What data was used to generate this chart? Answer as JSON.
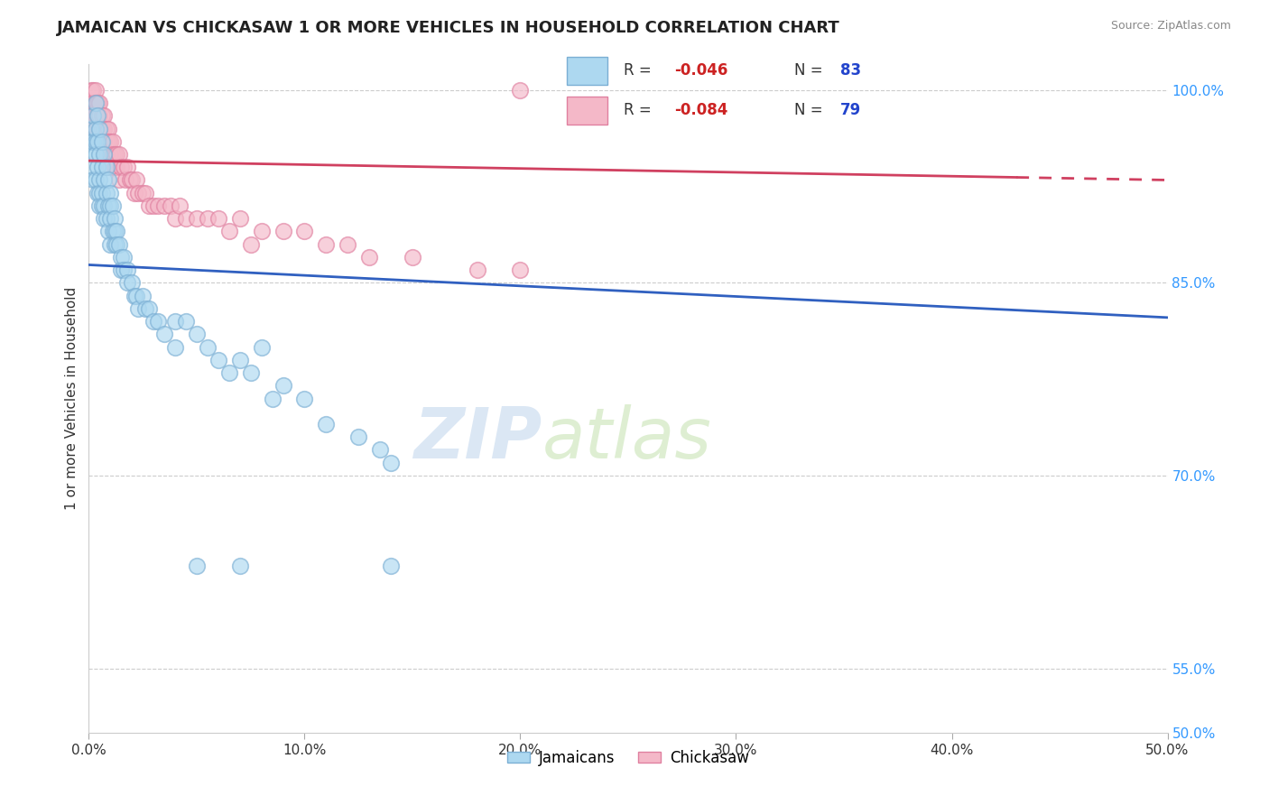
{
  "title": "JAMAICAN VS CHICKASAW 1 OR MORE VEHICLES IN HOUSEHOLD CORRELATION CHART",
  "source": "Source: ZipAtlas.com",
  "ylabel": "1 or more Vehicles in Household",
  "xlim": [
    0.0,
    0.5
  ],
  "ylim": [
    0.5,
    1.02
  ],
  "xtick_labels": [
    "0.0%",
    "10.0%",
    "20.0%",
    "30.0%",
    "40.0%",
    "50.0%"
  ],
  "xtick_vals": [
    0.0,
    0.1,
    0.2,
    0.3,
    0.4,
    0.5
  ],
  "ytick_right_labels": [
    "100.0%",
    "85.0%",
    "70.0%",
    "55.0%",
    "50.0%"
  ],
  "ytick_right_vals": [
    1.0,
    0.85,
    0.7,
    0.55,
    0.5
  ],
  "ytick_grid_vals": [
    1.0,
    0.85,
    0.7,
    0.55
  ],
  "watermark_zip": "ZIP",
  "watermark_atlas": "atlas",
  "R_jamaican": -0.046,
  "N_jamaican": 83,
  "R_chickasaw": -0.084,
  "N_chickasaw": 79,
  "color_jamaican_face": "#add8f0",
  "color_jamaican_edge": "#7bafd4",
  "color_chickasaw_face": "#f4b8c8",
  "color_chickasaw_edge": "#e080a0",
  "trendline_color_jamaican": "#3060c0",
  "trendline_color_chickasaw": "#d04060",
  "trend_j_y0": 0.864,
  "trend_j_y1": 0.823,
  "trend_c_y0": 0.945,
  "trend_c_y1": 0.93,
  "trend_c_solid_end": 0.43,
  "legend_label_jamaican": "Jamaicans",
  "legend_label_chickasaw": "Chickasaw",
  "legend_face_jamaican": "#add8f0",
  "legend_face_chickasaw": "#f4b8c8",
  "jamaican_x": [
    0.001,
    0.001,
    0.001,
    0.002,
    0.002,
    0.002,
    0.002,
    0.003,
    0.003,
    0.003,
    0.003,
    0.003,
    0.004,
    0.004,
    0.004,
    0.004,
    0.005,
    0.005,
    0.005,
    0.005,
    0.005,
    0.006,
    0.006,
    0.006,
    0.006,
    0.007,
    0.007,
    0.007,
    0.007,
    0.008,
    0.008,
    0.008,
    0.009,
    0.009,
    0.009,
    0.01,
    0.01,
    0.01,
    0.01,
    0.011,
    0.011,
    0.012,
    0.012,
    0.012,
    0.013,
    0.013,
    0.014,
    0.015,
    0.015,
    0.016,
    0.016,
    0.018,
    0.018,
    0.02,
    0.021,
    0.022,
    0.023,
    0.025,
    0.026,
    0.028,
    0.03,
    0.032,
    0.035,
    0.04,
    0.04,
    0.045,
    0.05,
    0.055,
    0.06,
    0.065,
    0.07,
    0.075,
    0.08,
    0.085,
    0.09,
    0.1,
    0.11,
    0.125,
    0.135,
    0.14,
    0.05,
    0.07,
    0.14
  ],
  "jamaican_y": [
    0.97,
    0.96,
    0.95,
    0.98,
    0.96,
    0.94,
    0.93,
    0.99,
    0.97,
    0.96,
    0.95,
    0.93,
    0.98,
    0.96,
    0.94,
    0.92,
    0.97,
    0.95,
    0.93,
    0.92,
    0.91,
    0.96,
    0.94,
    0.92,
    0.91,
    0.95,
    0.93,
    0.91,
    0.9,
    0.94,
    0.92,
    0.9,
    0.93,
    0.91,
    0.89,
    0.92,
    0.91,
    0.9,
    0.88,
    0.91,
    0.89,
    0.9,
    0.89,
    0.88,
    0.89,
    0.88,
    0.88,
    0.87,
    0.86,
    0.87,
    0.86,
    0.86,
    0.85,
    0.85,
    0.84,
    0.84,
    0.83,
    0.84,
    0.83,
    0.83,
    0.82,
    0.82,
    0.81,
    0.82,
    0.8,
    0.82,
    0.81,
    0.8,
    0.79,
    0.78,
    0.79,
    0.78,
    0.8,
    0.76,
    0.77,
    0.76,
    0.74,
    0.73,
    0.72,
    0.71,
    0.63,
    0.63,
    0.63
  ],
  "chickasaw_x": [
    0.001,
    0.001,
    0.001,
    0.002,
    0.002,
    0.002,
    0.002,
    0.002,
    0.003,
    0.003,
    0.003,
    0.003,
    0.003,
    0.004,
    0.004,
    0.004,
    0.004,
    0.005,
    0.005,
    0.005,
    0.005,
    0.006,
    0.006,
    0.006,
    0.007,
    0.007,
    0.007,
    0.007,
    0.008,
    0.008,
    0.008,
    0.009,
    0.009,
    0.01,
    0.01,
    0.01,
    0.011,
    0.011,
    0.012,
    0.012,
    0.013,
    0.013,
    0.014,
    0.014,
    0.015,
    0.016,
    0.017,
    0.018,
    0.019,
    0.02,
    0.021,
    0.022,
    0.023,
    0.025,
    0.026,
    0.028,
    0.03,
    0.032,
    0.035,
    0.038,
    0.04,
    0.042,
    0.045,
    0.05,
    0.055,
    0.06,
    0.065,
    0.07,
    0.075,
    0.08,
    0.09,
    0.1,
    0.11,
    0.12,
    0.13,
    0.15,
    0.18,
    0.2,
    0.2
  ],
  "chickasaw_y": [
    1.0,
    0.99,
    0.98,
    1.0,
    0.99,
    0.98,
    0.97,
    0.96,
    1.0,
    0.99,
    0.98,
    0.97,
    0.96,
    0.99,
    0.98,
    0.97,
    0.96,
    0.99,
    0.98,
    0.97,
    0.96,
    0.98,
    0.97,
    0.96,
    0.98,
    0.97,
    0.96,
    0.95,
    0.97,
    0.96,
    0.95,
    0.97,
    0.96,
    0.96,
    0.95,
    0.94,
    0.96,
    0.95,
    0.95,
    0.94,
    0.95,
    0.94,
    0.95,
    0.93,
    0.94,
    0.94,
    0.93,
    0.94,
    0.93,
    0.93,
    0.92,
    0.93,
    0.92,
    0.92,
    0.92,
    0.91,
    0.91,
    0.91,
    0.91,
    0.91,
    0.9,
    0.91,
    0.9,
    0.9,
    0.9,
    0.9,
    0.89,
    0.9,
    0.88,
    0.89,
    0.89,
    0.89,
    0.88,
    0.88,
    0.87,
    0.87,
    0.86,
    0.86,
    1.0
  ]
}
